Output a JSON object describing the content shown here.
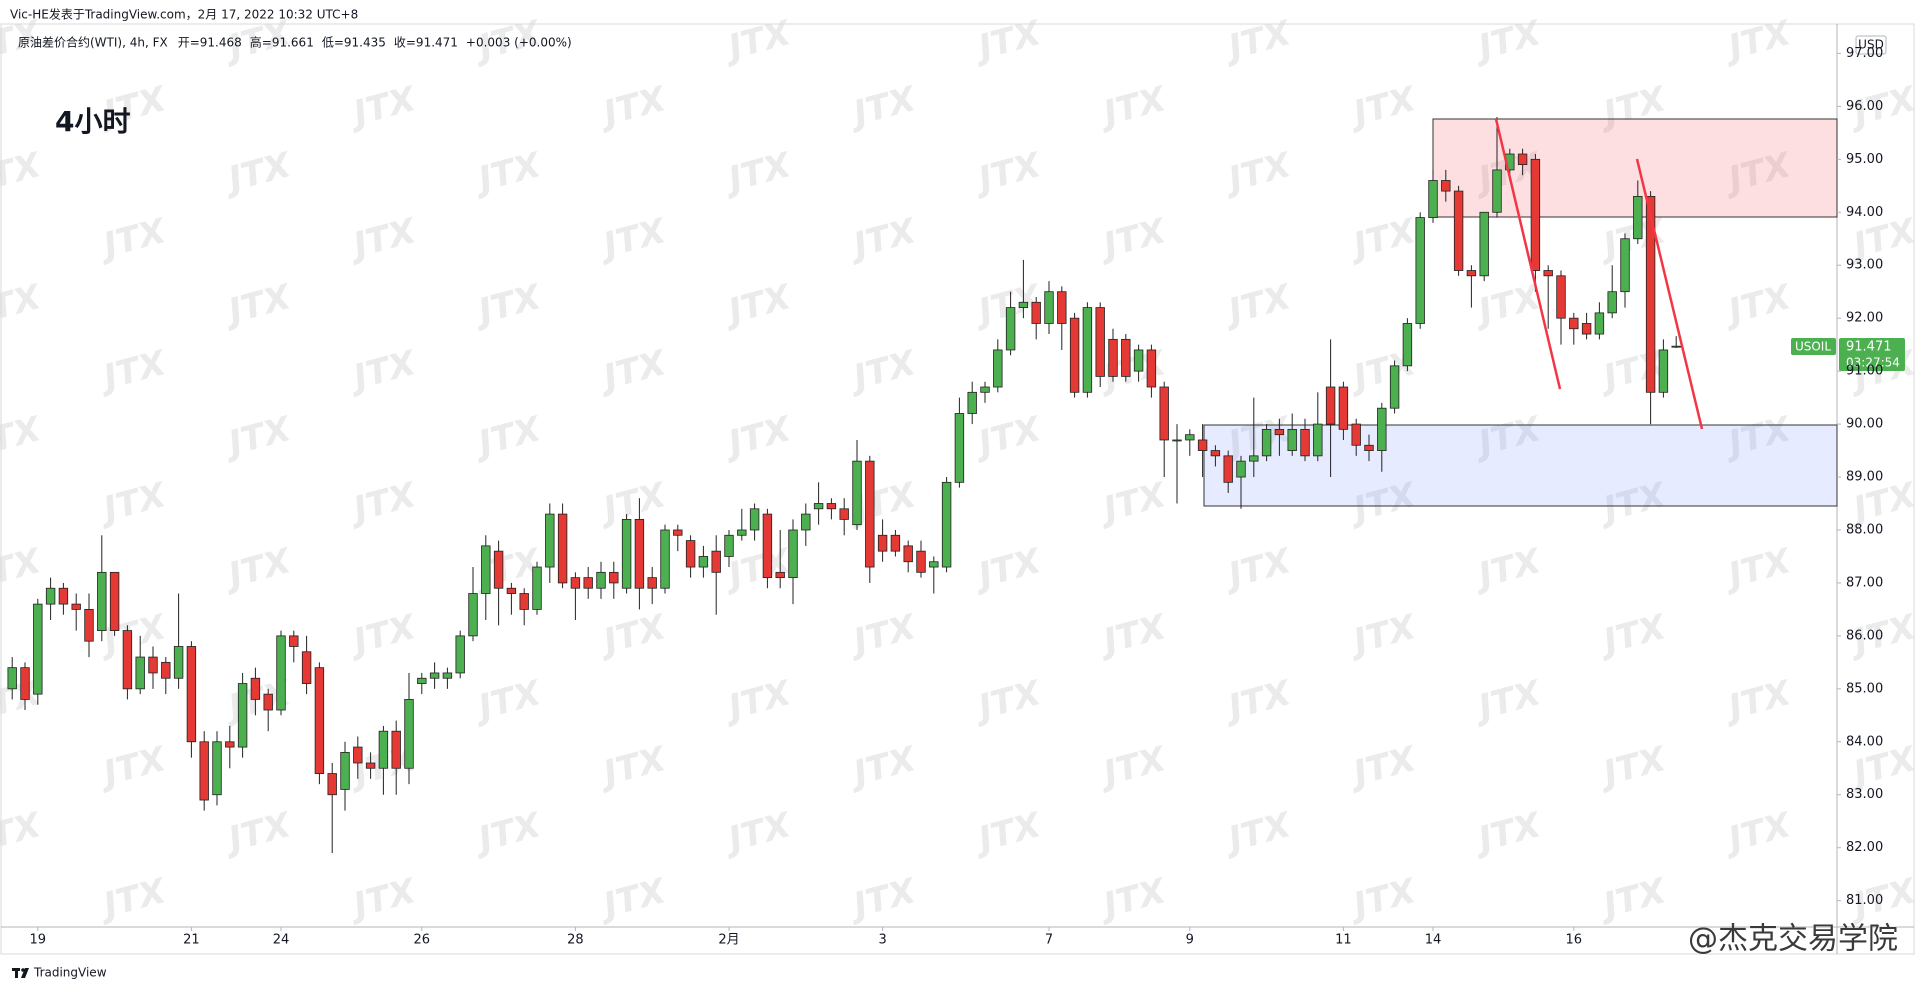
{
  "header": "Vic-HE发表于TradingView.com，2月 17, 2022 10:32 UTC+8",
  "legend": {
    "symbol": "原油差价合约(WTI), 4h, FX",
    "items": [
      "开=91.468",
      "高=91.661",
      "低=91.435",
      "收=91.471",
      "+0.003 (+0.00%)"
    ]
  },
  "timeframe_title": "4小时",
  "currency": "USD",
  "symbol_tag": "USOIL",
  "countdown": "03:27:54",
  "watermark": "JTX",
  "social_watermark": "@杰克交易学院",
  "footer_brand": "TradingView",
  "chart_data": {
    "type": "candlestick",
    "up_color": "#4caf50",
    "down_color": "#e53935",
    "categories": [
      null,
      null,
      "19",
      null,
      null,
      null,
      null,
      null,
      null,
      null,
      null,
      null,
      null,
      null,
      "21",
      null,
      null,
      null,
      null,
      null,
      null,
      "24",
      null,
      null,
      null,
      null,
      null,
      null,
      null,
      null,
      null,
      null,
      "26",
      null,
      null,
      null,
      null,
      null,
      null,
      null,
      null,
      null,
      null,
      null,
      "28",
      null,
      null,
      null,
      null,
      null,
      null,
      null,
      null,
      null,
      null,
      null,
      "2月",
      null,
      null,
      null,
      null,
      null,
      null,
      null,
      null,
      null,
      null,
      null,
      "3",
      null,
      null,
      null,
      null,
      null,
      null,
      null,
      null,
      null,
      null,
      null,
      null,
      "7",
      null,
      null,
      null,
      null,
      null,
      null,
      null,
      null,
      null,
      null,
      "9",
      null,
      null,
      null,
      null,
      null,
      null,
      null,
      null,
      null,
      null,
      null,
      "11",
      null,
      null,
      null,
      null,
      null,
      null,
      "14",
      null,
      null,
      null,
      null,
      null,
      null,
      null,
      null,
      null,
      null,
      "16",
      null,
      null,
      null,
      null,
      null,
      null,
      null,
      null
    ],
    "open": [
      85.0,
      85.4,
      84.9,
      86.6,
      86.9,
      86.6,
      86.5,
      86.1,
      87.2,
      86.1,
      85.0,
      85.6,
      85.5,
      85.2,
      85.8,
      84.0,
      83.0,
      84.0,
      83.9,
      85.2,
      84.9,
      84.6,
      86.0,
      85.7,
      85.4,
      83.4,
      83.1,
      83.9,
      83.6,
      83.5,
      84.2,
      83.5,
      85.1,
      85.2,
      85.2,
      85.3,
      86.0,
      86.8,
      87.6,
      86.9,
      86.8,
      86.5,
      87.3,
      88.3,
      87.1,
      87.1,
      86.9,
      87.2,
      86.9,
      88.2,
      87.1,
      86.9,
      88.0,
      87.8,
      87.3,
      87.6,
      87.5,
      87.9,
      88.0,
      88.3,
      87.2,
      87.1,
      88.0,
      88.4,
      88.5,
      88.4,
      88.1,
      89.3,
      87.9,
      87.9,
      87.7,
      87.6,
      87.3,
      87.3,
      88.9,
      90.2,
      90.6,
      90.7,
      91.4,
      92.2,
      92.3,
      91.9,
      92.5,
      92.0,
      90.6,
      92.2,
      91.6,
      91.6,
      91.0,
      91.4,
      90.7,
      89.7,
      89.7,
      89.7,
      89.5,
      89.4,
      89.0,
      89.3,
      89.4,
      89.9,
      89.5,
      89.9,
      89.4,
      90.7,
      90.7,
      90.0,
      89.6,
      89.5,
      90.3,
      91.1,
      91.9,
      93.9,
      94.6,
      94.4,
      92.9,
      92.8,
      94.0,
      94.8,
      95.1,
      95.0,
      92.9,
      92.8,
      92.0,
      91.9,
      91.7,
      92.1,
      92.5,
      93.5,
      94.3,
      90.6,
      91.468
    ],
    "high": [
      85.6,
      85.5,
      86.7,
      87.1,
      87.0,
      86.8,
      86.8,
      87.9,
      87.2,
      86.2,
      86.0,
      85.8,
      85.6,
      86.8,
      85.9,
      84.2,
      84.2,
      84.3,
      85.3,
      85.4,
      85.0,
      86.1,
      86.1,
      86.0,
      85.5,
      83.6,
      84.0,
      84.1,
      83.8,
      84.3,
      84.4,
      85.3,
      85.3,
      85.5,
      85.4,
      86.1,
      87.3,
      87.9,
      87.8,
      87.0,
      86.9,
      87.4,
      88.5,
      88.5,
      87.2,
      87.3,
      87.4,
      87.4,
      88.3,
      88.6,
      87.3,
      88.1,
      88.1,
      87.9,
      87.7,
      87.9,
      88.0,
      88.4,
      88.5,
      88.4,
      88.0,
      88.2,
      88.5,
      88.9,
      88.6,
      88.6,
      89.7,
      89.4,
      88.2,
      88.0,
      87.8,
      87.8,
      87.5,
      89.0,
      90.5,
      90.8,
      90.8,
      91.6,
      92.5,
      93.1,
      92.4,
      92.7,
      92.6,
      92.1,
      92.3,
      92.3,
      91.8,
      91.7,
      91.5,
      91.5,
      90.8,
      90.0,
      89.9,
      90.0,
      89.6,
      89.5,
      89.4,
      90.5,
      90.0,
      90.1,
      90.2,
      90.1,
      90.6,
      91.6,
      90.8,
      90.1,
      89.8,
      90.4,
      91.2,
      92.0,
      94.0,
      94.8,
      94.8,
      94.5,
      93.0,
      94.0,
      95.8,
      95.2,
      95.2,
      95.1,
      93.0,
      92.9,
      92.1,
      92.1,
      92.3,
      93.0,
      93.6,
      94.6,
      94.4,
      91.6,
      91.661
    ],
    "low": [
      84.8,
      84.6,
      84.7,
      86.3,
      86.4,
      86.1,
      85.6,
      85.9,
      86.0,
      84.8,
      84.9,
      85.0,
      84.9,
      85.0,
      83.7,
      82.7,
      82.8,
      83.5,
      83.7,
      84.5,
      84.2,
      84.5,
      85.5,
      84.9,
      83.2,
      81.9,
      82.7,
      83.3,
      83.3,
      83.0,
      83.0,
      83.2,
      84.9,
      85.0,
      85.0,
      85.2,
      85.9,
      86.3,
      86.2,
      86.4,
      86.2,
      86.4,
      87.0,
      86.9,
      86.3,
      86.7,
      86.7,
      86.7,
      86.8,
      86.5,
      86.6,
      86.8,
      87.6,
      87.1,
      87.1,
      86.4,
      87.3,
      87.8,
      87.8,
      86.9,
      86.9,
      86.6,
      87.7,
      88.1,
      88.2,
      87.9,
      88.0,
      87.0,
      87.4,
      87.5,
      87.2,
      87.1,
      86.8,
      87.2,
      88.8,
      90.0,
      90.4,
      90.6,
      91.3,
      92.0,
      91.6,
      91.7,
      91.4,
      90.5,
      90.5,
      90.7,
      90.8,
      90.8,
      90.8,
      90.5,
      89.0,
      88.5,
      89.4,
      89.0,
      89.2,
      88.7,
      88.4,
      89.0,
      89.3,
      89.4,
      89.4,
      89.3,
      89.3,
      89.0,
      89.7,
      89.4,
      89.3,
      89.1,
      90.2,
      91.0,
      91.8,
      93.8,
      94.2,
      92.8,
      92.2,
      92.7,
      93.9,
      94.6,
      94.7,
      92.5,
      91.8,
      91.5,
      91.5,
      91.6,
      91.6,
      92.0,
      92.2,
      93.4,
      90.0,
      90.5,
      91.435
    ],
    "close": [
      85.4,
      84.8,
      86.6,
      86.9,
      86.6,
      86.5,
      85.9,
      87.2,
      86.1,
      85.0,
      85.6,
      85.3,
      85.2,
      85.8,
      84.0,
      82.9,
      84.0,
      83.9,
      85.1,
      84.8,
      84.6,
      86.0,
      85.8,
      85.1,
      83.4,
      83.0,
      83.8,
      83.6,
      83.5,
      84.2,
      83.5,
      84.8,
      85.2,
      85.3,
      85.3,
      86.0,
      86.8,
      87.7,
      86.9,
      86.8,
      86.5,
      87.3,
      88.3,
      87.0,
      86.9,
      86.9,
      87.2,
      87.0,
      88.2,
      86.9,
      86.9,
      88.0,
      87.9,
      87.3,
      87.5,
      87.2,
      87.9,
      88.0,
      88.4,
      87.1,
      87.1,
      88.0,
      88.3,
      88.5,
      88.4,
      88.2,
      89.3,
      87.3,
      87.6,
      87.6,
      87.4,
      87.2,
      87.4,
      88.9,
      90.2,
      90.6,
      90.7,
      91.4,
      92.2,
      92.3,
      91.9,
      92.5,
      91.9,
      90.6,
      92.2,
      90.9,
      90.9,
      90.9,
      91.4,
      90.7,
      89.7,
      89.7,
      89.8,
      89.5,
      89.4,
      88.9,
      89.3,
      89.4,
      89.9,
      89.8,
      89.9,
      89.4,
      90.0,
      90.0,
      89.9,
      89.6,
      89.5,
      90.3,
      91.1,
      91.9,
      93.9,
      94.6,
      94.4,
      92.9,
      92.8,
      94.0,
      94.8,
      95.1,
      94.9,
      92.9,
      92.8,
      92.0,
      91.8,
      91.7,
      92.1,
      92.5,
      93.5,
      94.3,
      90.6,
      91.4,
      91.471
    ],
    "ylim": [
      80.54,
      97.31
    ],
    "yticks": [
      {
        "value": 81,
        "label": "81.00"
      },
      {
        "value": 82,
        "label": "82.00"
      },
      {
        "value": 83,
        "label": "83.00"
      },
      {
        "value": 84,
        "label": "84.00"
      },
      {
        "value": 85,
        "label": "85.00"
      },
      {
        "value": 86,
        "label": "86.00"
      },
      {
        "value": 87,
        "label": "87.00"
      },
      {
        "value": 88,
        "label": "88.00"
      },
      {
        "value": 89,
        "label": "89.00"
      },
      {
        "value": 90,
        "label": "90.00"
      },
      {
        "value": 91,
        "label": "91.00"
      },
      {
        "value": 92,
        "label": "92.00"
      },
      {
        "value": 93,
        "label": "93.00"
      },
      {
        "value": 94,
        "label": "94.00"
      },
      {
        "value": 95,
        "label": "95.00"
      },
      {
        "value": 96,
        "label": "96.00"
      },
      {
        "value": 97,
        "label": "97.00"
      }
    ]
  }
}
